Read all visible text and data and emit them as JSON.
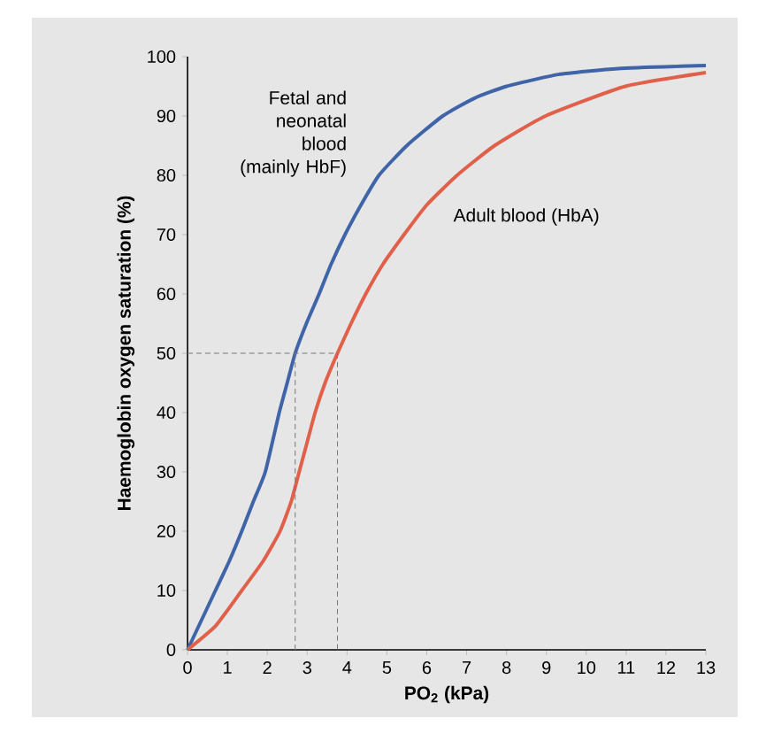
{
  "chart_data": {
    "type": "line",
    "xlabel": "PO$_{2}$ (kPa)",
    "ylabel": "Haemoglobin oxygen saturation (%)",
    "xlim": [
      0,
      13
    ],
    "ylim": [
      0,
      100
    ],
    "xticks": [
      0,
      1,
      2,
      3,
      4,
      5,
      6,
      7,
      8,
      9,
      10,
      11,
      12,
      13
    ],
    "yticks": [
      0,
      10,
      20,
      30,
      40,
      50,
      60,
      70,
      80,
      90,
      100
    ],
    "grid": false,
    "marker": "none",
    "series": [
      {
        "name": "Fetal and neonatal blood (mainly HbF)",
        "color": "#3f64a8",
        "x": [
          0,
          0.35,
          0.7,
          1.05,
          1.36,
          1.65,
          1.95,
          2.3,
          2.5,
          2.7,
          2.98,
          3.3,
          3.6,
          3.95,
          4.35,
          4.8,
          5.5,
          6.4,
          7.2,
          8.0,
          9.3,
          10.8,
          13
        ],
        "values": [
          0,
          5,
          10,
          15,
          20,
          25,
          30,
          40,
          45,
          50,
          55,
          60,
          65,
          70,
          75,
          80,
          85,
          90,
          93,
          95,
          97,
          98,
          98.5
        ]
      },
      {
        "name": "Adult blood (HbA)",
        "color": "#e0604a",
        "x": [
          0,
          0.7,
          1.36,
          1.9,
          2.32,
          2.6,
          2.8,
          3.0,
          3.2,
          3.45,
          3.76,
          4.1,
          4.47,
          4.9,
          5.43,
          6.0,
          6.76,
          7.7,
          8.98,
          10.98,
          13
        ],
        "values": [
          0,
          4,
          10,
          15,
          20,
          25,
          30,
          35,
          40,
          45,
          50,
          55,
          60,
          65,
          70,
          75,
          80,
          85,
          90,
          95,
          97.3
        ]
      },
      {
        "color": "#777777",
        "line_style": "dashed",
        "x": [
          0,
          3.76,
          3.76
        ],
        "values": [
          50,
          50,
          0
        ]
      },
      {
        "color": "#777777",
        "line_style": "dashed",
        "x": [
          2.7,
          2.7
        ],
        "values": [
          0,
          50
        ]
      }
    ]
  }
}
